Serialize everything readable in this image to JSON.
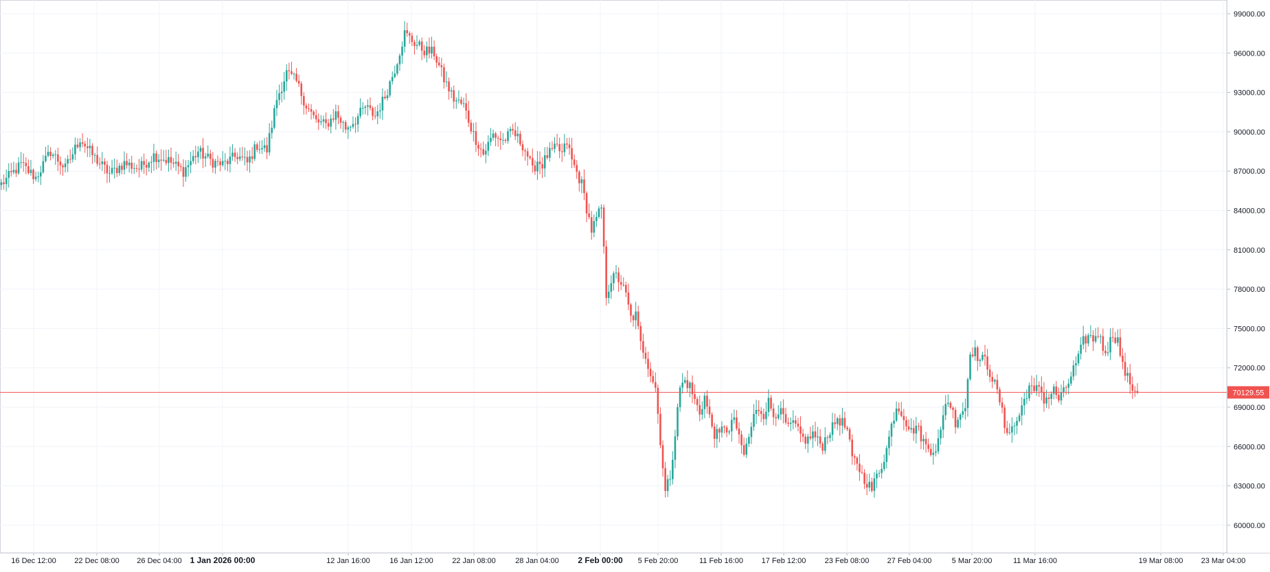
{
  "chart_data": {
    "type": "candlestick",
    "title": "",
    "xlabel": "",
    "ylabel": "",
    "grid": true,
    "ylim": [
      58500,
      100000
    ],
    "y_ticks": [
      "99000.00",
      "96000.00",
      "93000.00",
      "90000.00",
      "87000.00",
      "84000.00",
      "81000.00",
      "78000.00",
      "75000.00",
      "72000.00",
      "69000.00",
      "66000.00",
      "63000.00",
      "60000.00"
    ],
    "x_ticks": [
      {
        "label": "16 Dec 12:00",
        "bold": false
      },
      {
        "label": "22 Dec 08:00",
        "bold": false
      },
      {
        "label": "26 Dec 04:00",
        "bold": false
      },
      {
        "label": "1 Jan 2026 00:00",
        "bold": true
      },
      {
        "label": "12 Jan 16:00",
        "bold": false
      },
      {
        "label": "16 Jan 12:00",
        "bold": false
      },
      {
        "label": "22 Jan 08:00",
        "bold": false
      },
      {
        "label": "28 Jan 04:00",
        "bold": false
      },
      {
        "label": "2 Feb 00:00",
        "bold": true
      },
      {
        "label": "5 Feb 20:00",
        "bold": false
      },
      {
        "label": "11 Feb 16:00",
        "bold": false
      },
      {
        "label": "17 Feb 12:00",
        "bold": false
      },
      {
        "label": "23 Feb 08:00",
        "bold": false
      },
      {
        "label": "27 Feb 04:00",
        "bold": false
      },
      {
        "label": "5 Mar 20:00",
        "bold": false
      },
      {
        "label": "11 Mar 16:00",
        "bold": false
      },
      {
        "label": "19 Mar 08:00",
        "bold": false
      },
      {
        "label": "23 Mar 04:00",
        "bold": false
      }
    ],
    "current_price": 70129.55,
    "current_price_label": "70129.55",
    "colors": {
      "up": "#26a69a",
      "down": "#ef5350",
      "price_line": "#ef5350",
      "grid": "#f0f3fa",
      "axis_text": "#131722"
    },
    "series_path_closes": [
      [
        0,
        86000
      ],
      [
        8,
        87500
      ],
      [
        14,
        86500
      ],
      [
        20,
        88500
      ],
      [
        26,
        87200
      ],
      [
        32,
        89500
      ],
      [
        38,
        88000
      ],
      [
        44,
        86800
      ],
      [
        50,
        87600
      ],
      [
        56,
        87200
      ],
      [
        62,
        88200
      ],
      [
        68,
        87800
      ],
      [
        74,
        87000
      ],
      [
        80,
        88500
      ],
      [
        86,
        87700
      ],
      [
        90,
        87500
      ],
      [
        96,
        88200
      ],
      [
        100,
        87600
      ],
      [
        104,
        89000
      ],
      [
        108,
        88600
      ],
      [
        112,
        92500
      ],
      [
        116,
        94500
      ],
      [
        120,
        93800
      ],
      [
        124,
        92000
      ],
      [
        128,
        90800
      ],
      [
        132,
        90500
      ],
      [
        136,
        91400
      ],
      [
        140,
        90300
      ],
      [
        144,
        90900
      ],
      [
        148,
        91900
      ],
      [
        152,
        91200
      ],
      [
        156,
        92700
      ],
      [
        160,
        94800
      ],
      [
        164,
        97500
      ],
      [
        168,
        96800
      ],
      [
        172,
        96200
      ],
      [
        176,
        96000
      ],
      [
        180,
        94000
      ],
      [
        184,
        92500
      ],
      [
        188,
        92000
      ],
      [
        192,
        89800
      ],
      [
        196,
        88300
      ],
      [
        200,
        89800
      ],
      [
        204,
        89300
      ],
      [
        208,
        90000
      ],
      [
        212,
        89000
      ],
      [
        214,
        88200
      ],
      [
        216,
        87000
      ],
      [
        218,
        87800
      ],
      [
        220,
        87500
      ],
      [
        222,
        88200
      ],
      [
        224,
        88500
      ],
      [
        226,
        88800
      ],
      [
        228,
        88300
      ],
      [
        230,
        89200
      ],
      [
        232,
        87800
      ],
      [
        234,
        86900
      ],
      [
        236,
        86000
      ],
      [
        238,
        84200
      ],
      [
        240,
        82500
      ],
      [
        242,
        83300
      ],
      [
        244,
        84200
      ],
      [
        246,
        77600
      ],
      [
        248,
        78700
      ],
      [
        250,
        79000
      ],
      [
        252,
        78500
      ],
      [
        254,
        77500
      ],
      [
        256,
        75800
      ],
      [
        258,
        76000
      ],
      [
        260,
        73800
      ],
      [
        262,
        73000
      ],
      [
        264,
        71600
      ],
      [
        266,
        70500
      ],
      [
        268,
        66500
      ],
      [
        270,
        62500
      ],
      [
        272,
        63800
      ],
      [
        274,
        67000
      ],
      [
        276,
        70500
      ],
      [
        278,
        71000
      ],
      [
        280,
        70600
      ],
      [
        282,
        69500
      ],
      [
        284,
        68600
      ],
      [
        286,
        69800
      ],
      [
        288,
        68200
      ],
      [
        290,
        67000
      ],
      [
        292,
        66800
      ],
      [
        294,
        67700
      ],
      [
        296,
        67000
      ],
      [
        298,
        68300
      ],
      [
        300,
        66500
      ],
      [
        302,
        65400
      ],
      [
        304,
        66700
      ],
      [
        306,
        68300
      ],
      [
        308,
        68900
      ],
      [
        310,
        68500
      ],
      [
        312,
        69400
      ],
      [
        314,
        68400
      ],
      [
        316,
        68800
      ],
      [
        318,
        68200
      ],
      [
        320,
        67300
      ],
      [
        322,
        67800
      ],
      [
        324,
        67100
      ],
      [
        326,
        66600
      ],
      [
        328,
        66500
      ],
      [
        330,
        67000
      ],
      [
        332,
        66400
      ],
      [
        334,
        66100
      ],
      [
        336,
        67000
      ],
      [
        338,
        67400
      ],
      [
        340,
        68200
      ],
      [
        342,
        67800
      ],
      [
        344,
        67200
      ],
      [
        346,
        65000
      ],
      [
        348,
        64800
      ],
      [
        350,
        63800
      ],
      [
        352,
        63300
      ],
      [
        354,
        62700
      ],
      [
        356,
        63800
      ],
      [
        358,
        64600
      ],
      [
        360,
        65800
      ],
      [
        362,
        67600
      ],
      [
        364,
        69100
      ],
      [
        366,
        68700
      ],
      [
        368,
        67900
      ],
      [
        370,
        67100
      ],
      [
        372,
        67600
      ],
      [
        374,
        66800
      ],
      [
        376,
        66000
      ],
      [
        378,
        65800
      ],
      [
        380,
        65900
      ],
      [
        382,
        67000
      ],
      [
        384,
        69500
      ],
      [
        386,
        69200
      ],
      [
        388,
        67900
      ],
      [
        390,
        68600
      ],
      [
        392,
        69000
      ],
      [
        394,
        73400
      ],
      [
        396,
        73200
      ],
      [
        398,
        72600
      ],
      [
        400,
        72600
      ],
      [
        402,
        71700
      ],
      [
        404,
        70700
      ],
      [
        406,
        69500
      ],
      [
        408,
        67600
      ],
      [
        410,
        67200
      ],
      [
        412,
        67600
      ],
      [
        414,
        68400
      ],
      [
        416,
        69600
      ],
      [
        418,
        70600
      ],
      [
        420,
        70000
      ],
      [
        422,
        70700
      ],
      [
        424,
        69600
      ],
      [
        426,
        69800
      ],
      [
        428,
        70300
      ],
      [
        430,
        69600
      ],
      [
        432,
        70100
      ],
      [
        434,
        70900
      ],
      [
        436,
        71900
      ],
      [
        438,
        72700
      ],
      [
        440,
        74000
      ],
      [
        442,
        74400
      ],
      [
        444,
        74200
      ],
      [
        446,
        74700
      ],
      [
        448,
        73500
      ],
      [
        450,
        73500
      ],
      [
        452,
        74600
      ],
      [
        454,
        74100
      ],
      [
        456,
        72100
      ],
      [
        458,
        71200
      ],
      [
        460,
        70500
      ],
      [
        462,
        70100
      ]
    ]
  }
}
